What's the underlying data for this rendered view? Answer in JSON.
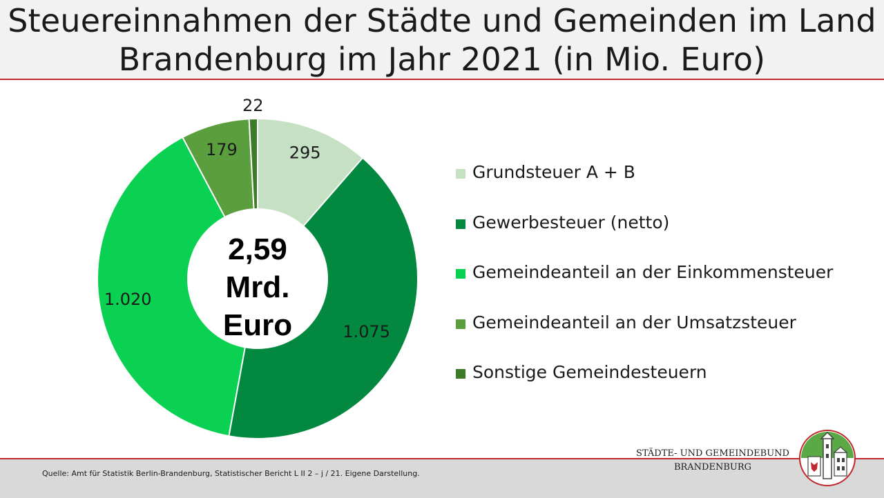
{
  "header": {
    "title_line1": "Steuereinnahmen der Städte und Gemeinden im Land",
    "title_line2": "Brandenburg im Jahr 2021 (in Mio. Euro)"
  },
  "chart_data": {
    "type": "pie",
    "donut": true,
    "center_label": [
      "2,59",
      "Mrd.",
      "Euro"
    ],
    "categories": [
      "Grundsteuer A + B",
      "Gewerbesteuer (netto)",
      "Gemeindeanteil an der Einkommensteuer",
      "Gemeindeanteil an der Umsatzsteuer",
      "Sonstige Gemeindesteuern"
    ],
    "values": [
      295,
      1075,
      1020,
      179,
      22
    ],
    "value_labels": [
      "295",
      "1.075",
      "1.020",
      "179",
      "22"
    ],
    "colors": [
      "#c6e0c4",
      "#03893f",
      "#0ad151",
      "#5b9e3e",
      "#3d7a2a"
    ],
    "legend_position": "right"
  },
  "footer": {
    "source": "Quelle: Amt für Statistik Berlin-Brandenburg, Statistischer Bericht L II 2 – j / 21. Eigene Darstellung.",
    "org_line1": "STÄDTE-  UND GEMEINDEBUND",
    "org_line2": "BRANDENBURG"
  }
}
